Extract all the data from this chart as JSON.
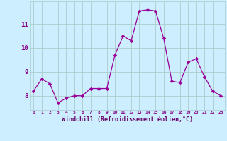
{
  "x": [
    0,
    1,
    2,
    3,
    4,
    5,
    6,
    7,
    8,
    9,
    10,
    11,
    12,
    13,
    14,
    15,
    16,
    17,
    18,
    19,
    20,
    21,
    22,
    23
  ],
  "y": [
    8.2,
    8.7,
    8.5,
    7.7,
    7.9,
    8.0,
    8.0,
    8.3,
    8.3,
    8.3,
    9.7,
    10.5,
    10.3,
    11.55,
    11.6,
    11.55,
    10.4,
    8.6,
    8.55,
    9.4,
    9.55,
    8.8,
    8.2,
    8.0
  ],
  "line_color": "#990099",
  "marker": "D",
  "marker_size": 2.2,
  "bg_color": "#cceeff",
  "grid_color": "#aacccc",
  "xlabel": "Windchill (Refroidissement éolien,°C)",
  "xlabel_color": "#660066",
  "tick_color": "#880088",
  "ylim_min": 7.4,
  "ylim_max": 11.95,
  "yticks": [
    8,
    9,
    10,
    11
  ],
  "xticks": [
    0,
    1,
    2,
    3,
    4,
    5,
    6,
    7,
    8,
    9,
    10,
    11,
    12,
    13,
    14,
    15,
    16,
    17,
    18,
    19,
    20,
    21,
    22,
    23
  ]
}
